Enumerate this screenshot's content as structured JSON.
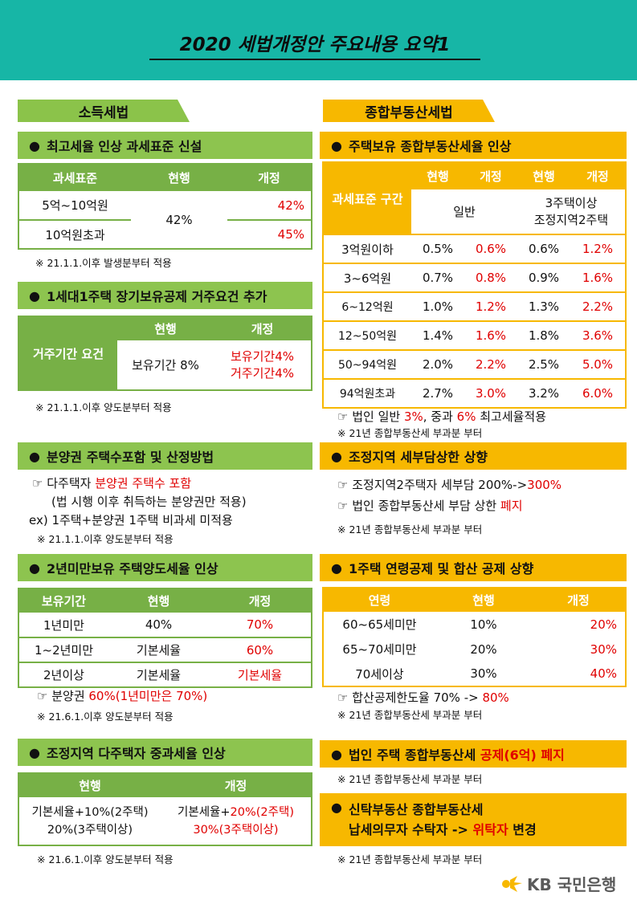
{
  "title": "2020 세법개정안 주요내용 요약1",
  "left": {
    "tab": "소득세법",
    "s1": {
      "title": "최고세율 인상 과세표준 신설",
      "headers": [
        "과세표준",
        "현행",
        "개정"
      ],
      "rows": [
        [
          "5억~10억원",
          "42%"
        ],
        [
          "10억원초과",
          "45%"
        ]
      ],
      "current": "42%",
      "note": "※ 21.1.1.이후 발생분부터 적용"
    },
    "s2": {
      "title": "1세대1주택 장기보유공제 거주요건 추가",
      "col_label": "거주기간 요건",
      "headers": [
        "현행",
        "개정"
      ],
      "current": "보유기간 8%",
      "new1": "보유기간4%",
      "new2": "거주기간4%",
      "note": "※ 21.1.1.이후 양도분부터 적용"
    },
    "s3": {
      "title": "분양권 주택수포함 및 산정방법",
      "l1a": "☞ 다주택자 ",
      "l1b": "분양권 주택수 포함",
      "l2": "(법 시행 이후 취득하는 분양권만 적용)",
      "l3": "ex) 1주택+분양권 1주택 비과세 미적용",
      "note": "※ 21.1.1.이후 양도분부터 적용"
    },
    "s4": {
      "title": "2년미만보유 주택양도세율 인상",
      "headers": [
        "보유기간",
        "현행",
        "개정"
      ],
      "rows": [
        [
          "1년미만",
          "40%",
          "70%"
        ],
        [
          "1~2년미만",
          "기본세율",
          "60%"
        ],
        [
          "2년이상",
          "기본세율",
          "기본세율"
        ]
      ],
      "l1a": "☞ 분양권 ",
      "l1b": "60%(1년미만은 70%)",
      "note": "※ 21.6.1.이후 양도분부터 적용"
    },
    "s5": {
      "title": "조정지역 다주택자 중과세율 인상",
      "headers": [
        "현행",
        "개정"
      ],
      "cur1": "기본세율+10%(2주택)",
      "cur2": "20%(3주택이상)",
      "new1a": "기본세율+",
      "new1b": "20%(2주택)",
      "new2": "30%(3주택이상)",
      "note": "※ 21.6.1.이후 양도분부터 적용"
    }
  },
  "right": {
    "tab": "종합부동산세법",
    "s1": {
      "title": "주택보유 종합부동산세율 인상",
      "col_label": "과세표준 구간",
      "headers": [
        "현행",
        "개정",
        "현행",
        "개정"
      ],
      "sub1": "일반",
      "sub2a": "3주택이상",
      "sub2b": "조정지역2주택",
      "rows": [
        [
          "3억원이하",
          "0.5%",
          "0.6%",
          "0.6%",
          "1.2%"
        ],
        [
          "3~6억원",
          "0.7%",
          "0.8%",
          "0.9%",
          "1.6%"
        ],
        [
          "6~12억원",
          "1.0%",
          "1.2%",
          "1.3%",
          "2.2%"
        ],
        [
          "12~50억원",
          "1.4%",
          "1.6%",
          "1.8%",
          "3.6%"
        ],
        [
          "50~94억원",
          "2.0%",
          "2.2%",
          "2.5%",
          "5.0%"
        ],
        [
          "94억원초과",
          "2.7%",
          "3.0%",
          "3.2%",
          "6.0%"
        ]
      ],
      "l1a": "☞ 법인 일반 ",
      "l1b": "3%",
      "l1c": ", 중과 ",
      "l1d": "6%",
      "l1e": " 최고세율적용",
      "note": "※ 21년 종합부동산세 부과분 부터"
    },
    "s2": {
      "title": "조정지역 세부담상한 상향",
      "l1a": "☞ 조정지역2주택자 세부담 200%->",
      "l1b": "300%",
      "l2a": "☞ 법인 종합부동산세 부담 상한 ",
      "l2b": "폐지",
      "note": "※ 21년 종합부동산세 부과분 부터"
    },
    "s3": {
      "title": "1주택 연령공제 및 합산 공제 상향",
      "headers": [
        "연령",
        "현행",
        "개정"
      ],
      "rows": [
        [
          "60~65세미만",
          "10%",
          "20%"
        ],
        [
          "65~70세미만",
          "20%",
          "30%"
        ],
        [
          "70세이상",
          "30%",
          "40%"
        ]
      ],
      "l1a": "☞ 합산공제한도율 70% -> ",
      "l1b": "80%",
      "note": "※ 21년 종합부동산세 부과분 부터"
    },
    "s4": {
      "title_a": "법인 주택 종합부동산세 ",
      "title_b": "공제(6억) 폐지",
      "note": "※ 21년 종합부동산세 부과분 부터"
    },
    "s5": {
      "title1": "신탁부동산  종합부동산세",
      "title2a": "납세의무자 수탁자 -> ",
      "title2b": "위탁자",
      "title2c": " 변경",
      "note": "※ 21년 종합부동산세 부과분 부터"
    }
  },
  "logo": "KB 국민은행"
}
